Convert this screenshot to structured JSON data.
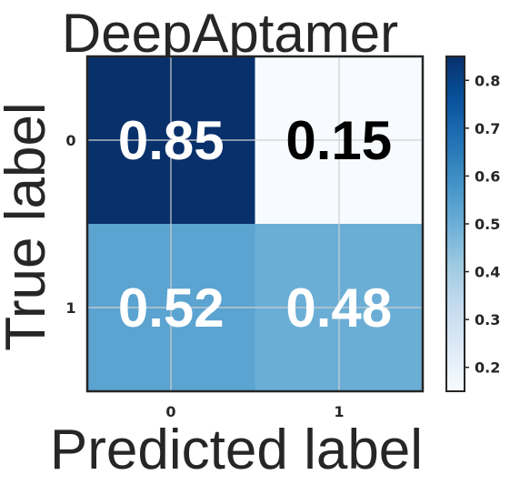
{
  "chart_data": {
    "type": "heatmap",
    "title": "DeepAptamer",
    "xlabel": "Predicted label",
    "ylabel": "True label",
    "x_categories": [
      "0",
      "1"
    ],
    "y_categories": [
      "0",
      "1"
    ],
    "values": [
      [
        0.85,
        0.15
      ],
      [
        0.52,
        0.48
      ]
    ],
    "value_labels": [
      [
        "0.85",
        "0.15"
      ],
      [
        "0.52",
        "0.48"
      ]
    ],
    "colormap": "Blues",
    "vmin": 0.15,
    "vmax": 0.85,
    "colorbar_ticks": [
      "0.2",
      "0.3",
      "0.4",
      "0.5",
      "0.6",
      "0.7",
      "0.8"
    ],
    "grid": true,
    "colors": {
      "cell_00": "#08306b",
      "cell_01": "#f7fbff",
      "cell_10": "#5ba3d0",
      "cell_11": "#6aaed6",
      "text_on_dark": "#ffffff",
      "text_on_light": "#000000"
    }
  }
}
